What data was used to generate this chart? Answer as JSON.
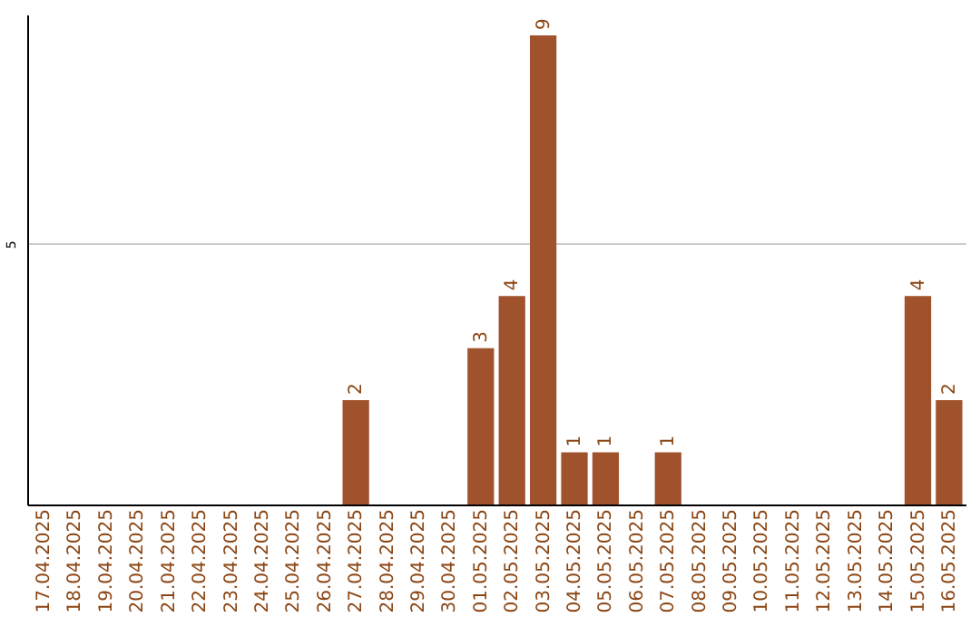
{
  "chart_data": {
    "type": "bar",
    "categories": [
      "17.04.2025",
      "18.04.2025",
      "19.04.2025",
      "20.04.2025",
      "21.04.2025",
      "22.04.2025",
      "23.04.2025",
      "24.04.2025",
      "25.04.2025",
      "26.04.2025",
      "27.04.2025",
      "28.04.2025",
      "29.04.2025",
      "30.04.2025",
      "01.05.2025",
      "02.05.2025",
      "03.05.2025",
      "04.05.2025",
      "05.05.2025",
      "06.05.2025",
      "07.05.2025",
      "08.05.2025",
      "09.05.2025",
      "10.05.2025",
      "11.05.2025",
      "12.05.2025",
      "13.05.2025",
      "14.05.2025",
      "15.05.2025",
      "16.05.2025"
    ],
    "values": [
      0,
      0,
      0,
      0,
      0,
      0,
      0,
      0,
      0,
      0,
      2,
      0,
      0,
      0,
      3,
      4,
      9,
      1,
      1,
      0,
      1,
      0,
      0,
      0,
      0,
      0,
      0,
      0,
      4,
      2
    ],
    "value_labels": [
      null,
      null,
      null,
      null,
      null,
      null,
      null,
      null,
      null,
      null,
      "2",
      null,
      null,
      null,
      "3",
      "4",
      "9",
      "1",
      "1",
      null,
      "1",
      null,
      null,
      null,
      null,
      null,
      null,
      null,
      "4",
      "2"
    ],
    "color": "#a0522d",
    "ylim": [
      0,
      9.4
    ],
    "yticks": [
      5
    ],
    "grid": "y"
  }
}
